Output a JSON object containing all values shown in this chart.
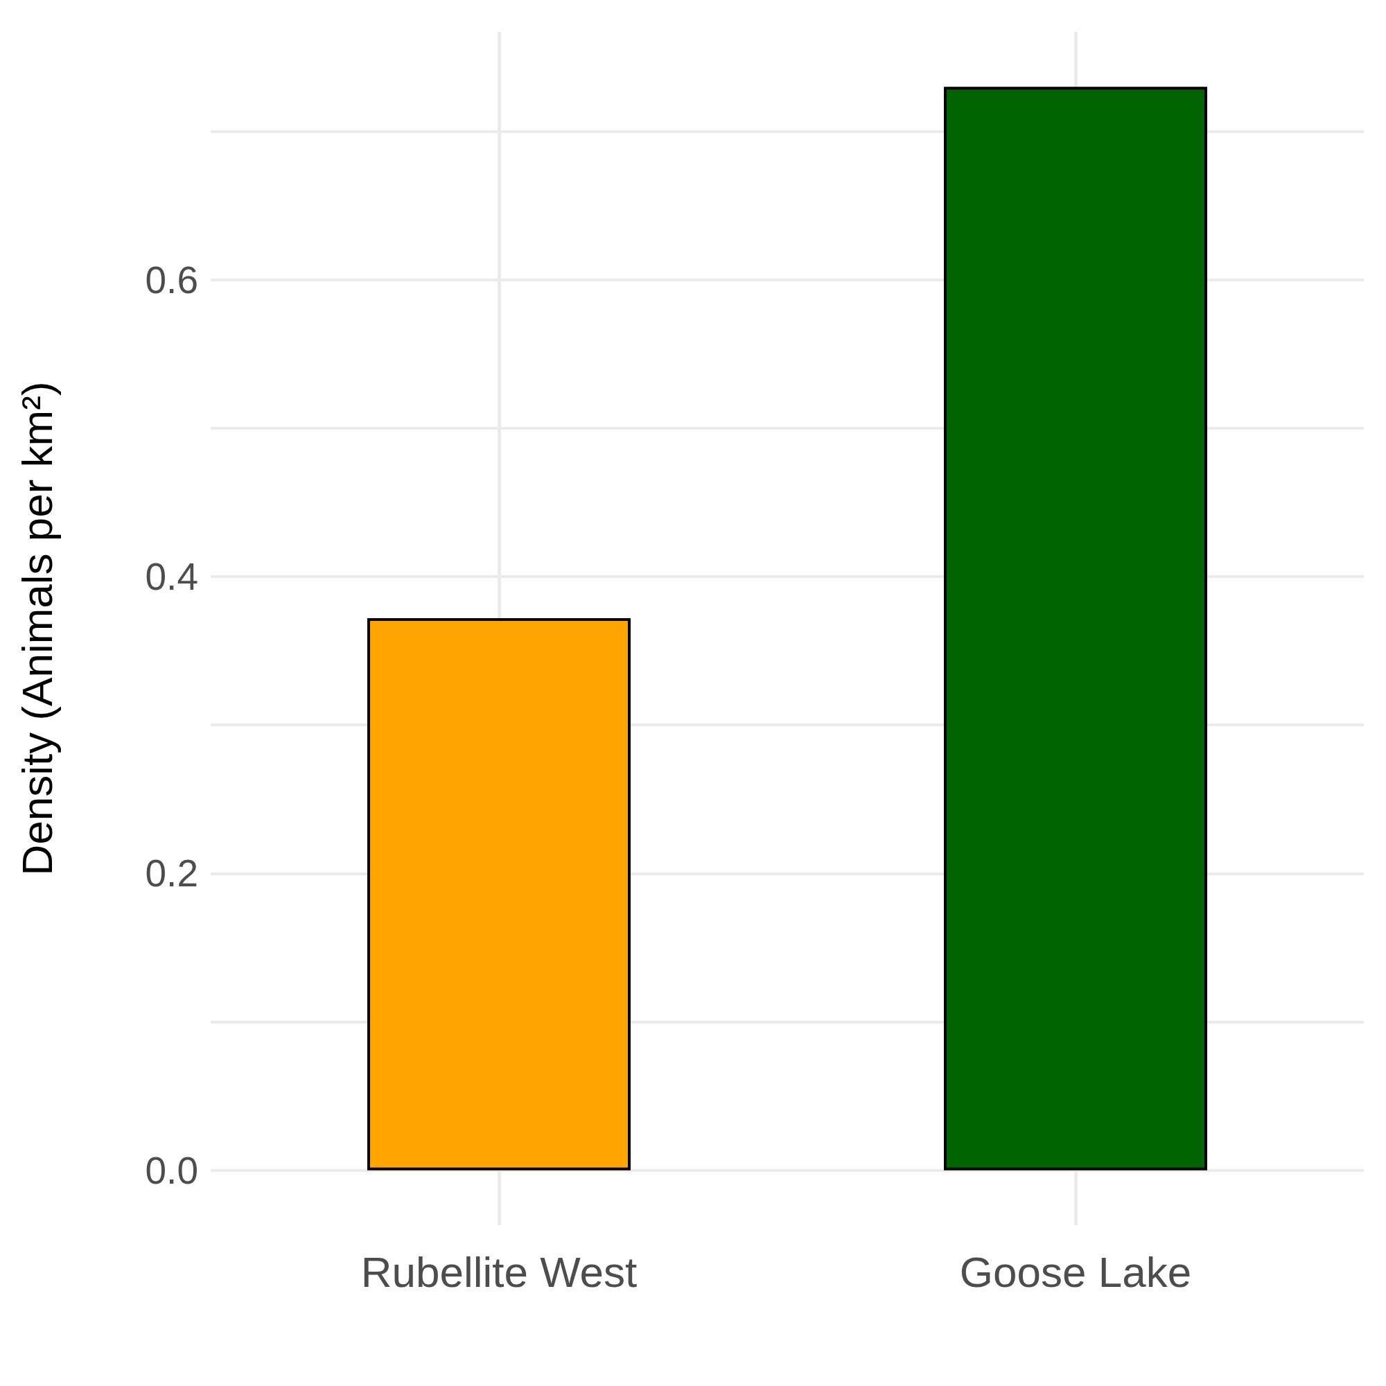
{
  "chart_data": {
    "type": "bar",
    "ylabel": "Density (Animals per km²)",
    "categories": [
      "Rubellite West",
      "Goose Lake"
    ],
    "values": [
      0.372,
      0.73
    ],
    "colors": [
      "#ffa500",
      "#006400"
    ],
    "ylim": [
      -0.037,
      0.767
    ],
    "yticks": [
      {
        "value": 0,
        "label": "0.0"
      },
      {
        "value": 0.1,
        "label": null
      },
      0.2,
      {
        "value": 0.3,
        "label": null
      },
      0.4,
      {
        "value": 0.5,
        "label": null
      },
      0.6,
      {
        "value": 0.7,
        "label": null
      }
    ],
    "grid": true
  }
}
